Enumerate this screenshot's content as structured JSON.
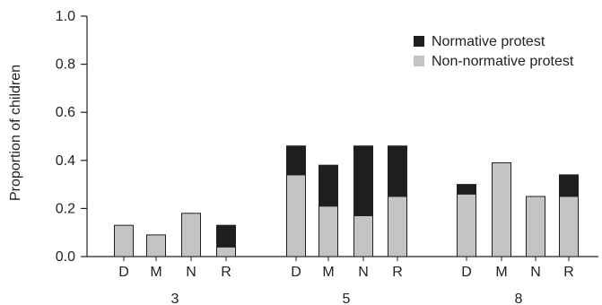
{
  "chart_data": {
    "type": "bar",
    "stacked": true,
    "ylabel": "Proportion of children",
    "xlabel": "",
    "ylim": [
      0,
      1.0
    ],
    "yticks": [
      "0.0",
      "0.2",
      "0.4",
      "0.6",
      "0.8",
      "1.0"
    ],
    "groups": [
      {
        "label": "3",
        "categories": [
          "D",
          "M",
          "N",
          "R"
        ]
      },
      {
        "label": "5",
        "categories": [
          "D",
          "M",
          "N",
          "R"
        ]
      },
      {
        "label": "8",
        "categories": [
          "D",
          "M",
          "N",
          "R"
        ]
      }
    ],
    "series": [
      {
        "name": "Non-normative protest",
        "color": "#c4c4c4",
        "values": [
          0.13,
          0.09,
          0.18,
          0.04,
          0.34,
          0.21,
          0.17,
          0.25,
          0.26,
          0.39,
          0.25,
          0.25
        ]
      },
      {
        "name": "Normative protest",
        "color": "#1e1e1e",
        "values": [
          0.0,
          0.0,
          0.0,
          0.09,
          0.12,
          0.17,
          0.29,
          0.21,
          0.04,
          0.0,
          0.0,
          0.09
        ]
      }
    ],
    "legend": [
      {
        "label": "Normative protest",
        "color": "#1e1e1e"
      },
      {
        "label": "Non-normative protest",
        "color": "#c4c4c4"
      }
    ],
    "legend_position": "top-right",
    "grid": false
  }
}
